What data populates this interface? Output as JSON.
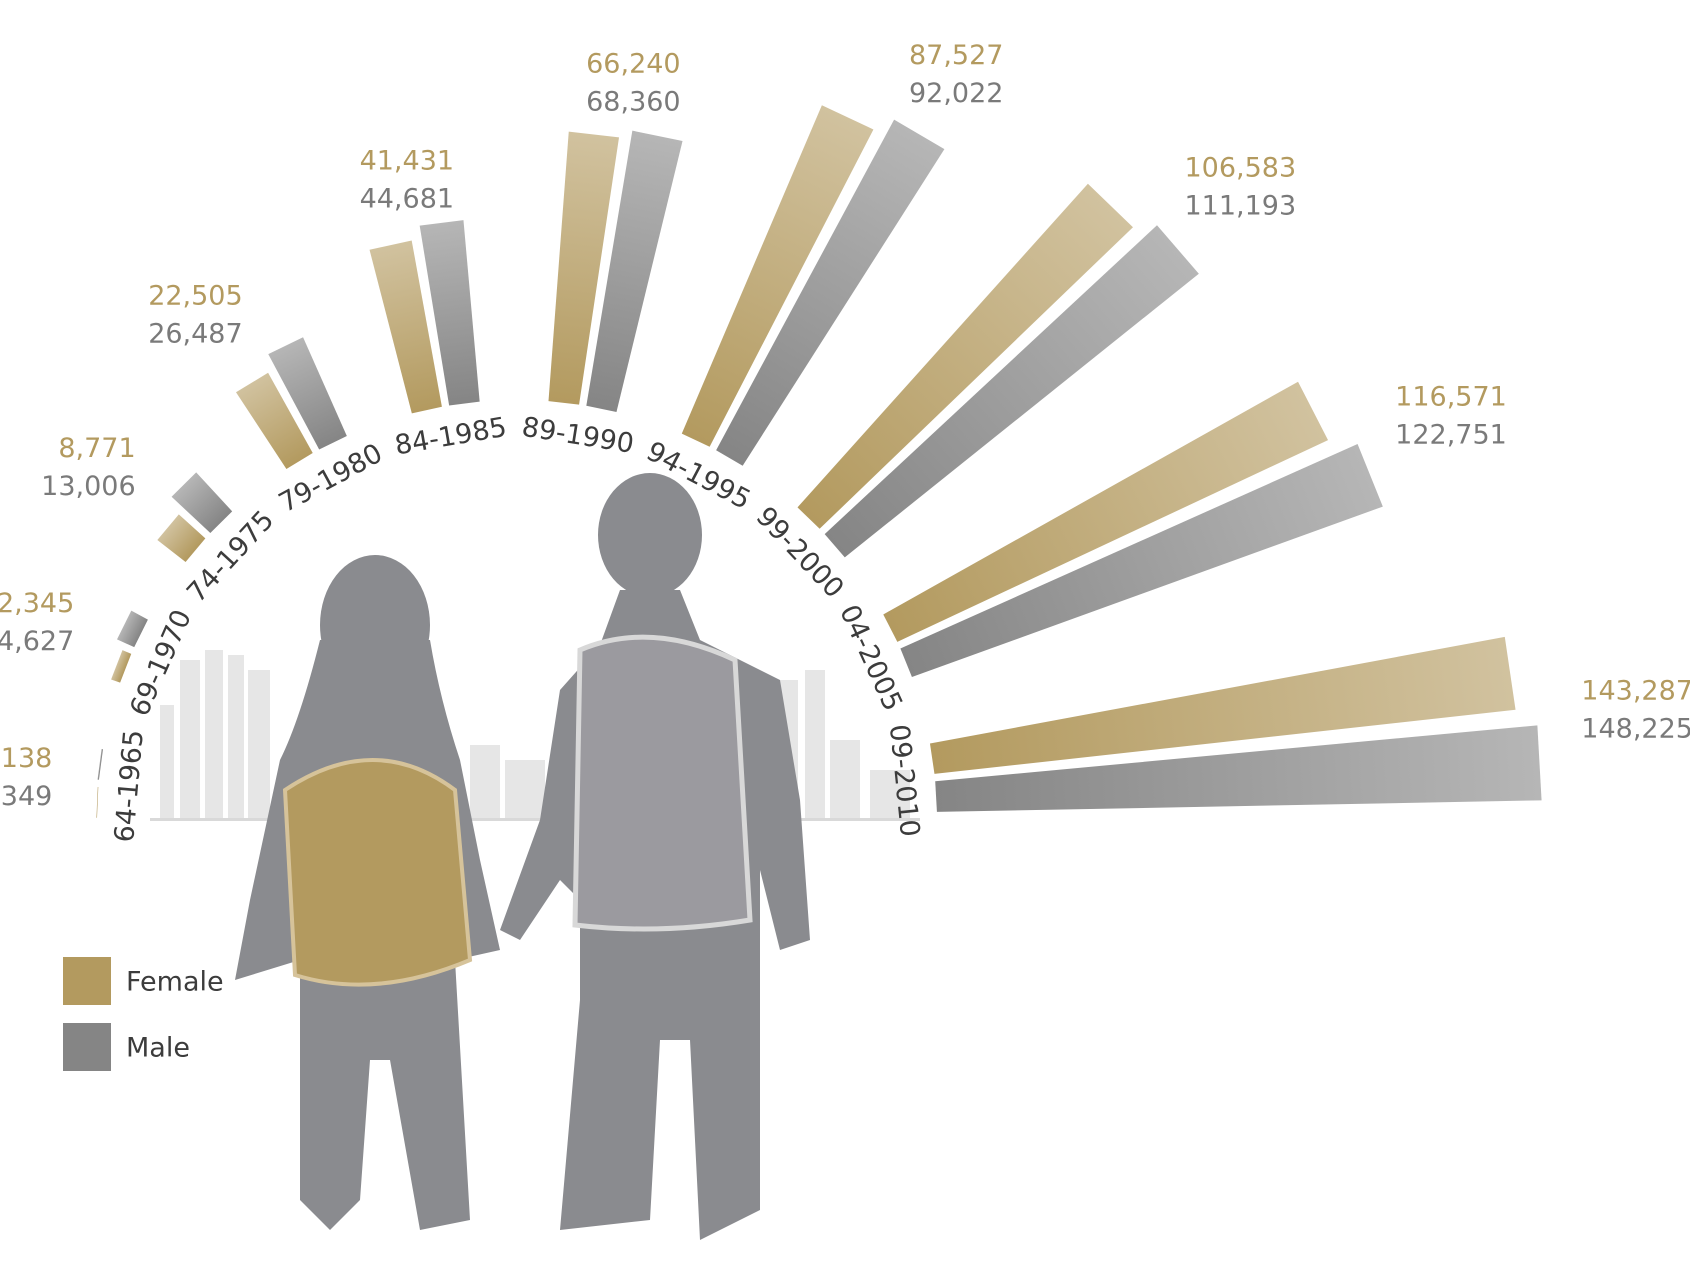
{
  "chart_data": {
    "type": "radial-bar",
    "categories": [
      "64-1965",
      "69-1970",
      "74-1975",
      "79-1980",
      "84-1985",
      "89-1990",
      "94-1995",
      "99-2000",
      "04-2005",
      "09-2010"
    ],
    "series": [
      {
        "name": "Female",
        "color": "#b39a5f",
        "values": [
          138,
          2345,
          8771,
          22505,
          41431,
          66240,
          87527,
          106583,
          116571,
          143287
        ],
        "value_labels": [
          "138",
          "2,345",
          "8,771",
          "22,505",
          "41,431",
          "66,240",
          "87,527",
          "106,583",
          "116,571",
          "143,287"
        ]
      },
      {
        "name": "Male",
        "color": "#858585",
        "values": [
          349,
          4627,
          13006,
          26487,
          44681,
          68360,
          92022,
          111193,
          122751,
          148225
        ],
        "value_labels": [
          "349",
          "4,627",
          "13,006",
          "26,487",
          "44,681",
          "68,360",
          "92,022",
          "111,193",
          "122,751",
          "148,225"
        ]
      }
    ]
  }
}
